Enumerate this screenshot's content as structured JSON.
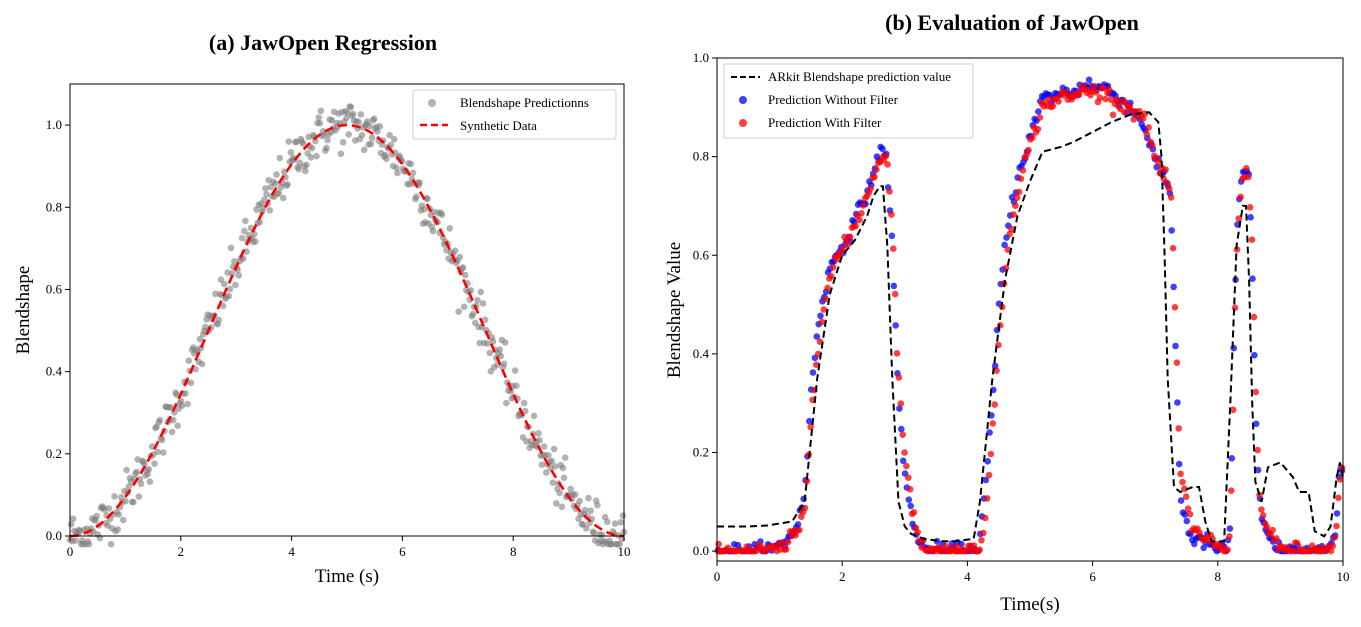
{
  "chart_data": [
    {
      "type": "scatter",
      "title": "(a) JawOpen Regression",
      "xlabel": "Time (s)",
      "ylabel": "Blendshape",
      "xlim": [
        0,
        10
      ],
      "ylim": [
        0,
        1.1
      ],
      "xticks": [
        "0",
        "2",
        "4",
        "6",
        "8",
        "10"
      ],
      "yticks": [
        "0.0",
        "0.2",
        "0.4",
        "0.6",
        "0.8",
        "1.0"
      ],
      "legend_position": "top-right",
      "series": [
        {
          "name": "Blendshape Predictionns",
          "kind": "scatter",
          "color": "#7f7f7f",
          "n_points": 500,
          "noise_sd": 0.03,
          "model": "(1 - cos(2*pi*x/10)) / 2"
        },
        {
          "name": "Synthetic Data",
          "kind": "line",
          "style": "dashed",
          "color": "#ff0000",
          "model": "(1 - cos(2*pi*x/10)) / 2"
        }
      ]
    },
    {
      "type": "line",
      "title": "(b) Evaluation of JawOpen",
      "xlabel": "Time(s)",
      "ylabel": "Blendshape Value",
      "xlim": [
        0,
        10
      ],
      "ylim": [
        -0.02,
        1.0
      ],
      "xticks": [
        "0",
        "2",
        "4",
        "6",
        "8",
        "10"
      ],
      "yticks": [
        "0.0",
        "0.2",
        "0.4",
        "0.6",
        "0.8",
        "1.0"
      ],
      "legend_position": "top-left",
      "series": [
        {
          "name": "ARkit Blendshape prediction value",
          "kind": "line",
          "style": "dashed",
          "color": "#000000",
          "x": [
            0,
            0.5,
            0.8,
            1.2,
            1.4,
            1.6,
            1.8,
            2.0,
            2.2,
            2.4,
            2.5,
            2.6,
            2.65,
            2.72,
            2.8,
            2.9,
            3.0,
            3.1,
            3.3,
            3.6,
            3.8,
            4.1,
            4.2,
            4.4,
            4.6,
            4.8,
            5.0,
            5.2,
            5.5,
            5.7,
            6.0,
            6.3,
            6.6,
            6.9,
            7.05,
            7.1,
            7.15,
            7.2,
            7.3,
            7.4,
            7.6,
            7.7,
            7.8,
            7.9,
            8.1,
            8.2,
            8.3,
            8.4,
            8.45,
            8.5,
            8.55,
            8.6,
            8.7,
            8.8,
            9.0,
            9.2,
            9.3,
            9.45,
            9.55,
            9.7,
            9.8,
            9.9,
            9.95,
            10
          ],
          "y": [
            0.05,
            0.05,
            0.052,
            0.06,
            0.1,
            0.35,
            0.52,
            0.6,
            0.63,
            0.68,
            0.72,
            0.74,
            0.74,
            0.62,
            0.35,
            0.1,
            0.05,
            0.035,
            0.025,
            0.02,
            0.02,
            0.025,
            0.1,
            0.35,
            0.55,
            0.68,
            0.75,
            0.81,
            0.82,
            0.83,
            0.85,
            0.87,
            0.885,
            0.89,
            0.87,
            0.8,
            0.6,
            0.35,
            0.13,
            0.12,
            0.13,
            0.13,
            0.06,
            0.02,
            0.02,
            0.3,
            0.62,
            0.7,
            0.7,
            0.55,
            0.3,
            0.14,
            0.1,
            0.17,
            0.18,
            0.15,
            0.12,
            0.12,
            0.04,
            0.03,
            0.05,
            0.15,
            0.18,
            0.15
          ]
        },
        {
          "name": "Prediction Without Filter",
          "kind": "scatter",
          "color": "#0000ff",
          "x": [
            0,
            0.3,
            0.6,
            0.9,
            1.1,
            1.3,
            1.4,
            1.45,
            1.5,
            1.6,
            1.7,
            1.8,
            1.9,
            2.0,
            2.1,
            2.2,
            2.3,
            2.4,
            2.5,
            2.58,
            2.65,
            2.7,
            2.75,
            2.8,
            2.85,
            2.9,
            3.0,
            3.1,
            3.2,
            3.3,
            3.6,
            4.0,
            4.15,
            4.2,
            4.3,
            4.4,
            4.5,
            4.6,
            4.7,
            4.8,
            4.9,
            5.0,
            5.1,
            5.2,
            5.3,
            5.5,
            5.7,
            5.9,
            6.0,
            6.2,
            6.4,
            6.6,
            6.8,
            6.9,
            7.0,
            7.05,
            7.1,
            7.15,
            7.2,
            7.25,
            7.3,
            7.35,
            7.4,
            7.6,
            7.8,
            8.0,
            8.1,
            8.15,
            8.2,
            8.25,
            8.3,
            8.35,
            8.4,
            8.45,
            8.5,
            8.55,
            8.6,
            8.65,
            8.7,
            8.75,
            8.8,
            8.9,
            9.0,
            9.3,
            9.6,
            9.8,
            9.85,
            9.9,
            9.95,
            10
          ],
          "y": [
            0,
            0,
            0,
            0.003,
            0.02,
            0.06,
            0.12,
            0.22,
            0.32,
            0.45,
            0.52,
            0.57,
            0.6,
            0.62,
            0.64,
            0.67,
            0.7,
            0.73,
            0.77,
            0.8,
            0.82,
            0.8,
            0.72,
            0.6,
            0.45,
            0.3,
            0.15,
            0.08,
            0.02,
            0.005,
            0,
            0,
            0,
            0.03,
            0.15,
            0.3,
            0.5,
            0.62,
            0.7,
            0.76,
            0.8,
            0.84,
            0.88,
            0.92,
            0.92,
            0.93,
            0.93,
            0.95,
            0.94,
            0.94,
            0.92,
            0.9,
            0.87,
            0.83,
            0.79,
            0.77,
            0.77,
            0.76,
            0.74,
            0.7,
            0.5,
            0.3,
            0.1,
            0.02,
            0.02,
            0.003,
            0,
            0.003,
            0.06,
            0.4,
            0.65,
            0.73,
            0.77,
            0.78,
            0.75,
            0.55,
            0.28,
            0.12,
            0.07,
            0.04,
            0.03,
            0.01,
            0,
            0,
            0,
            0,
            0.02,
            0.08,
            0.17,
            0.15
          ]
        },
        {
          "name": "Prediction With Filter",
          "kind": "scatter",
          "color": "#ff0000",
          "x": [
            0,
            0.3,
            0.6,
            0.9,
            1.1,
            1.3,
            1.4,
            1.45,
            1.5,
            1.6,
            1.7,
            1.8,
            1.9,
            2.0,
            2.1,
            2.2,
            2.3,
            2.4,
            2.5,
            2.6,
            2.65,
            2.7,
            2.75,
            2.8,
            2.85,
            2.9,
            3.0,
            3.1,
            3.2,
            3.3,
            3.6,
            4.0,
            4.15,
            4.2,
            4.3,
            4.4,
            4.5,
            4.6,
            4.7,
            4.8,
            4.9,
            5.0,
            5.1,
            5.2,
            5.3,
            5.5,
            5.7,
            5.9,
            6.0,
            6.2,
            6.4,
            6.6,
            6.8,
            6.9,
            7.0,
            7.05,
            7.1,
            7.15,
            7.2,
            7.25,
            7.3,
            7.35,
            7.4,
            7.6,
            7.8,
            8.0,
            8.1,
            8.15,
            8.2,
            8.25,
            8.3,
            8.35,
            8.4,
            8.45,
            8.5,
            8.55,
            8.6,
            8.65,
            8.7,
            8.75,
            8.8,
            8.9,
            9.0,
            9.3,
            9.6,
            9.8,
            9.85,
            9.9,
            9.95,
            10
          ],
          "y": [
            0,
            0,
            0,
            0,
            0.01,
            0.04,
            0.08,
            0.16,
            0.26,
            0.4,
            0.49,
            0.55,
            0.59,
            0.61,
            0.63,
            0.66,
            0.69,
            0.72,
            0.76,
            0.79,
            0.81,
            0.8,
            0.76,
            0.66,
            0.52,
            0.36,
            0.2,
            0.1,
            0.04,
            0.01,
            0,
            0,
            0,
            0.01,
            0.08,
            0.22,
            0.42,
            0.56,
            0.66,
            0.73,
            0.78,
            0.82,
            0.86,
            0.9,
            0.91,
            0.92,
            0.92,
            0.94,
            0.93,
            0.93,
            0.91,
            0.9,
            0.88,
            0.85,
            0.8,
            0.78,
            0.77,
            0.76,
            0.75,
            0.72,
            0.58,
            0.38,
            0.16,
            0.04,
            0.03,
            0.01,
            0,
            0,
            0.02,
            0.3,
            0.6,
            0.7,
            0.75,
            0.78,
            0.77,
            0.62,
            0.36,
            0.16,
            0.09,
            0.06,
            0.04,
            0.02,
            0.005,
            0,
            0,
            0,
            0.01,
            0.05,
            0.14,
            0.16
          ]
        }
      ]
    }
  ]
}
